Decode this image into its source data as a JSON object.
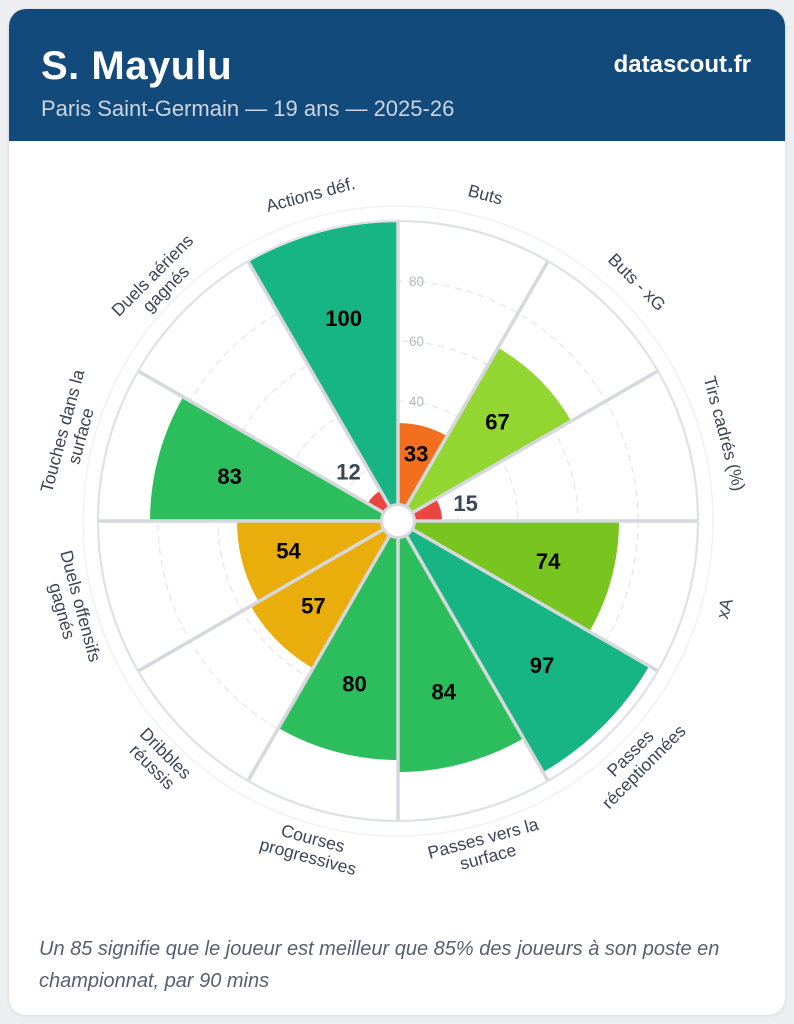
{
  "header": {
    "title": "S. Mayulu",
    "subtitle": "Paris Saint-Germain — 19 ans — 2025-26",
    "brand": "datascout.fr",
    "bg_color": "#134a7c"
  },
  "chart_data": {
    "type": "pizza",
    "subtype": "percentile-radial-bar",
    "max": 100,
    "ticks": [
      20,
      40,
      60,
      80
    ],
    "categories": [
      "Buts",
      "Buts - xG",
      "Tirs cadrés (%)",
      "xA",
      "Passes réceptionnées",
      "Passes vers la surface",
      "Courses progressives",
      "Dribbles réussis",
      "Duels offensifs gagnés",
      "Touches dans la surface",
      "Duels aériens gagnés",
      "Actions déf."
    ],
    "label_lines": [
      [
        "Buts"
      ],
      [
        "Buts - xG"
      ],
      [
        "Tirs cadrés (%)"
      ],
      [
        "xA"
      ],
      [
        "Passes",
        "réceptionnées"
      ],
      [
        "Passes vers la",
        "surface"
      ],
      [
        "Courses",
        "progressives"
      ],
      [
        "Dribbles",
        "réussis"
      ],
      [
        "Duels offensifs",
        "gagnés"
      ],
      [
        "Touches dans la",
        "surface"
      ],
      [
        "Duels aériens",
        "gagnés"
      ],
      [
        "Actions déf."
      ]
    ],
    "values": [
      33,
      67,
      15,
      74,
      97,
      84,
      80,
      57,
      54,
      83,
      12,
      100
    ],
    "colors": [
      "#f2701d",
      "#93d631",
      "#ea4540",
      "#79c520",
      "#17b583",
      "#2cbe5d",
      "#2cbe5d",
      "#e9ad0c",
      "#e9ad0c",
      "#2cbe5d",
      "#ea4540",
      "#17b583"
    ],
    "legend_position": "none",
    "grid": "dashed-circles",
    "styles": {
      "category_label_color": "#3a4557",
      "value_label_color": "#000000",
      "outside_value_label_color": "#3a4557",
      "tick_label_color": "#b5b9c1",
      "grid_color": "#e6e7eb",
      "separator_color": "#d7d8dd",
      "outer_ring_color": "#dfe1e6",
      "faint_ring_color": "#f0f1f4"
    }
  },
  "footer": {
    "note": "Un 85 signifie que le joueur est meilleur que 85% des joueurs à son poste en championnat, par 90 mins"
  }
}
